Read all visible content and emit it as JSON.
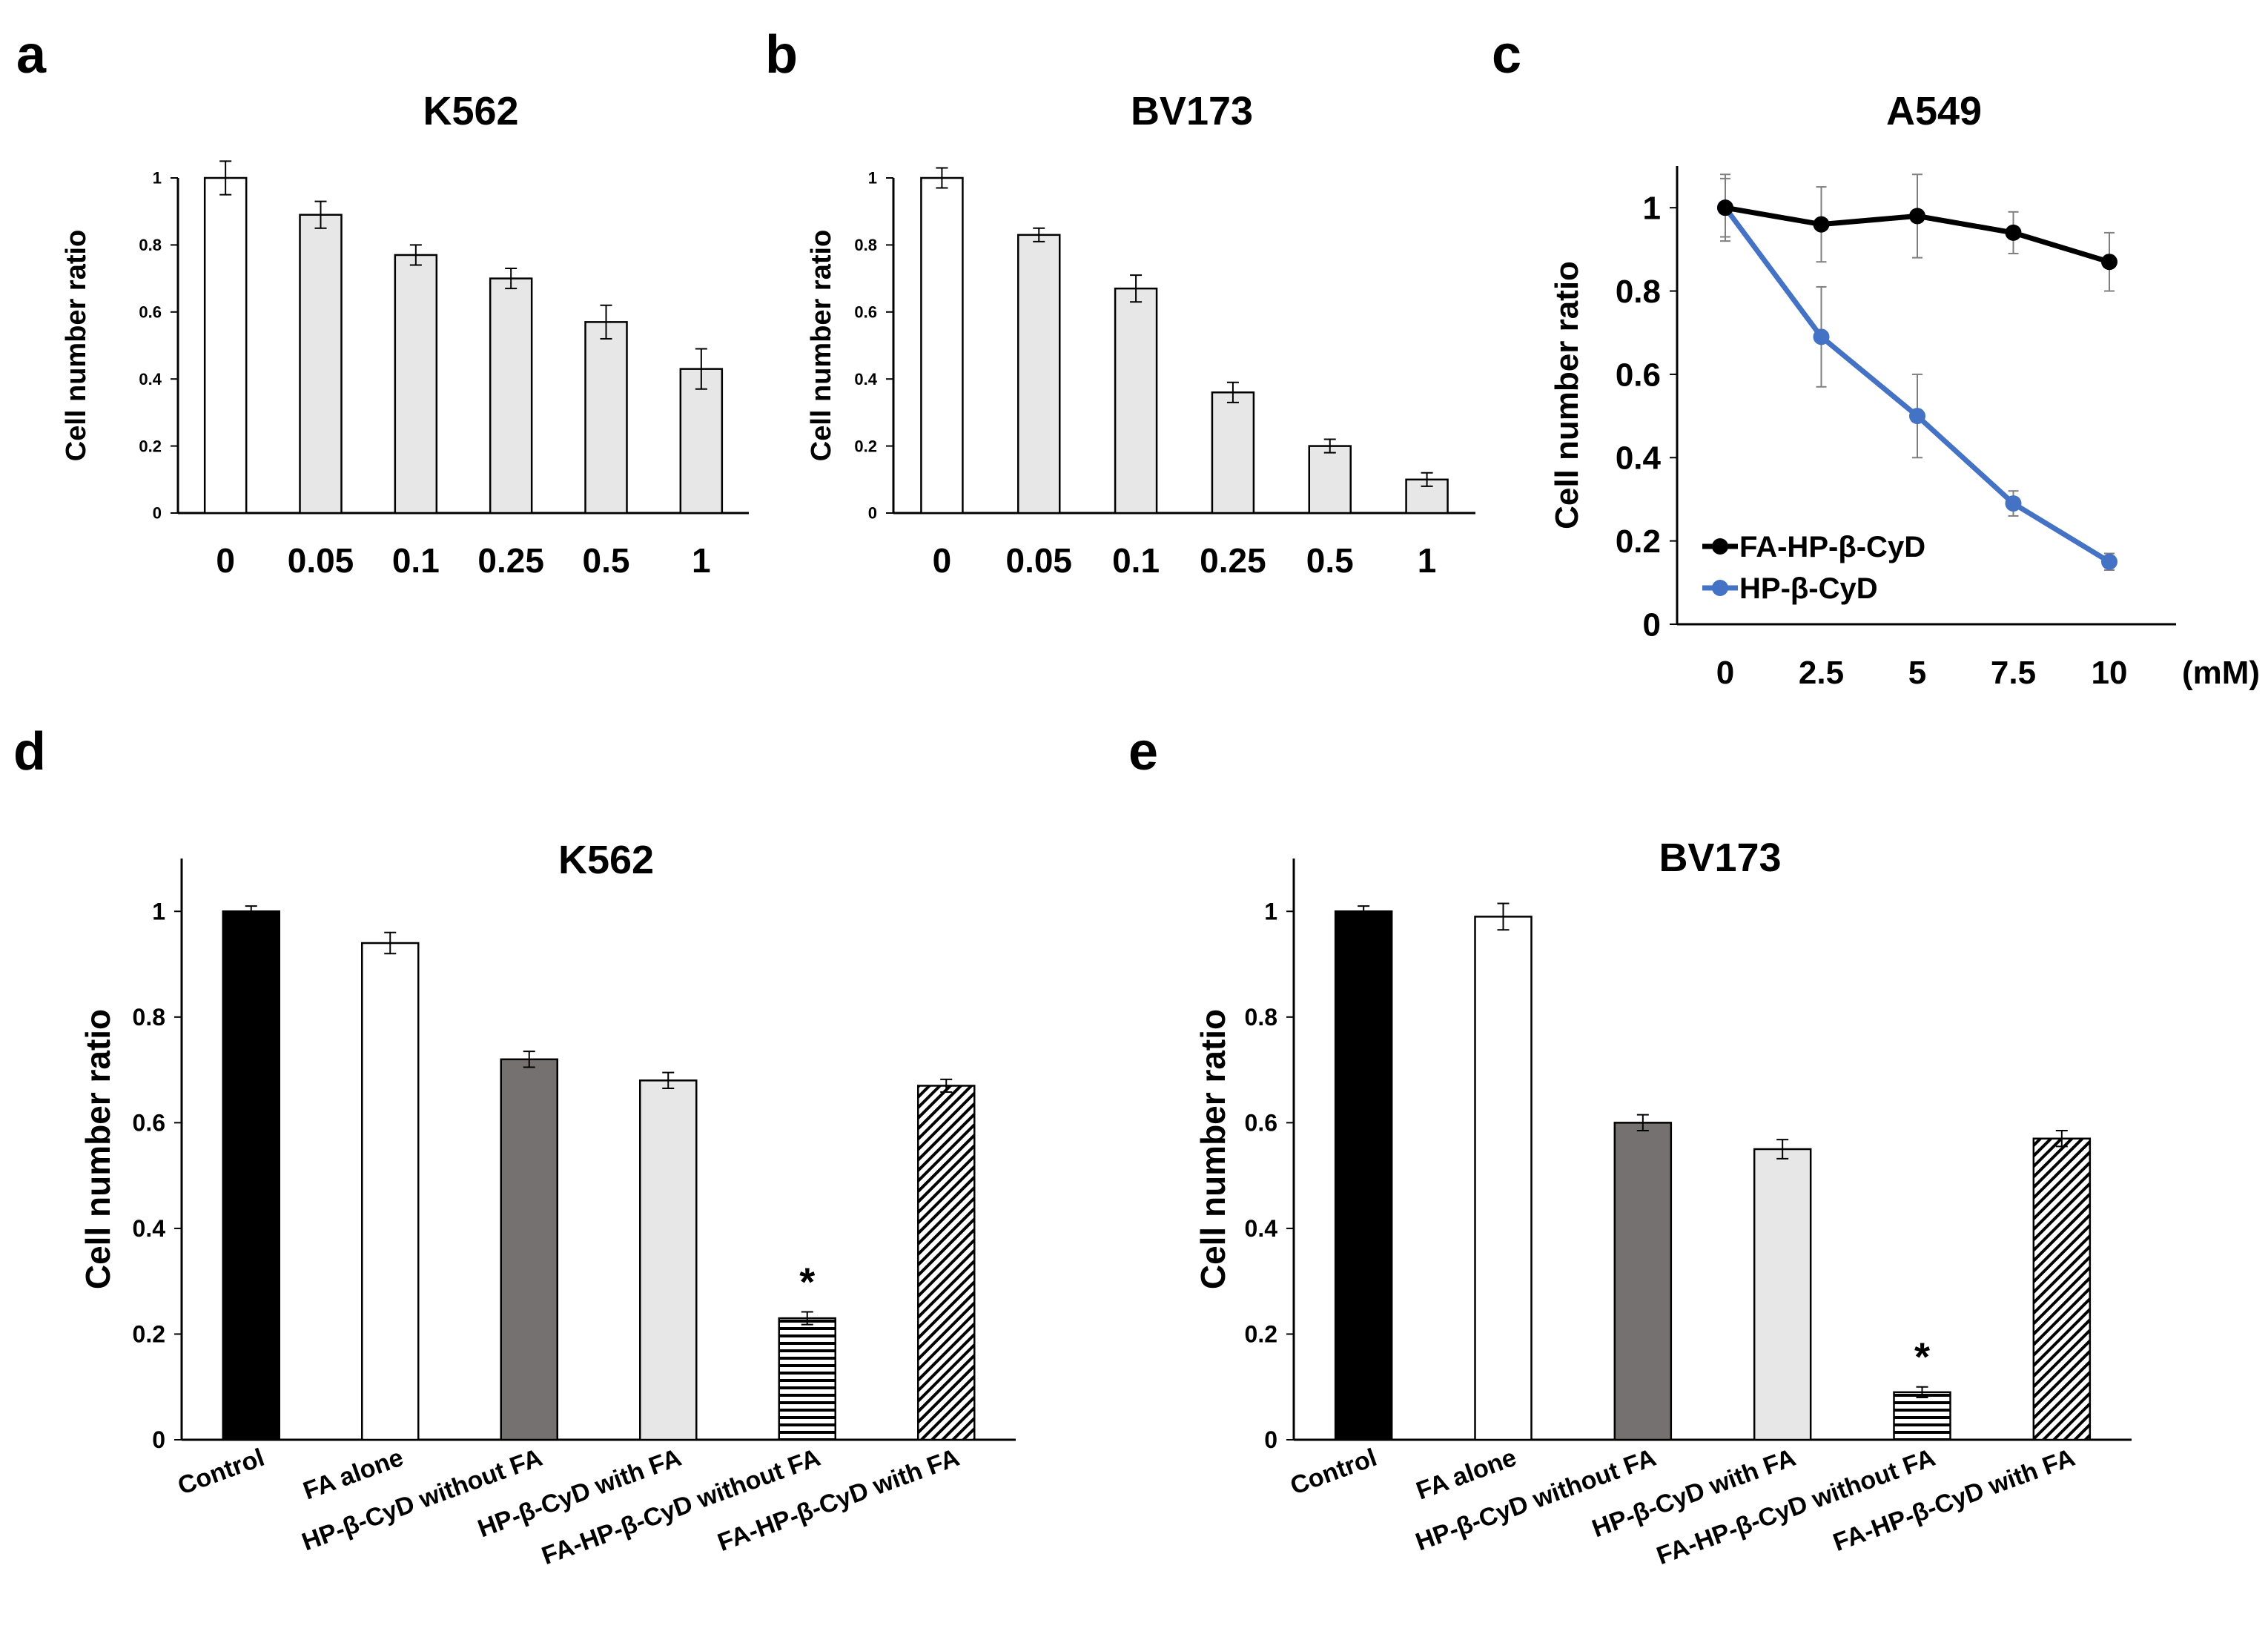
{
  "chart_data": [
    {
      "panel": "a",
      "type": "bar",
      "title": "K562",
      "ylabel": "Cell number ratio",
      "xlabel": "",
      "categories": [
        "0",
        "0.05",
        "0.1",
        "0.25",
        "0.5",
        "1"
      ],
      "values": [
        1.0,
        0.89,
        0.77,
        0.7,
        0.57,
        0.43
      ],
      "errors": [
        0.05,
        0.04,
        0.03,
        0.03,
        0.05,
        0.06
      ],
      "fills": [
        "#ffffff",
        "#e7e7e7",
        "#e7e7e7",
        "#e7e7e7",
        "#e7e7e7",
        "#e7e7e7"
      ],
      "ylim": [
        0,
        1
      ],
      "yticks": [
        "0",
        "0.2",
        "0.4",
        "0.6",
        "0.8",
        "1"
      ],
      "grid": false
    },
    {
      "panel": "b",
      "type": "bar",
      "title": "BV173",
      "ylabel": "Cell number ratio",
      "xlabel": "",
      "categories": [
        "0",
        "0.05",
        "0.1",
        "0.25",
        "0.5",
        "1"
      ],
      "values": [
        1.0,
        0.83,
        0.67,
        0.36,
        0.2,
        0.1
      ],
      "errors": [
        0.03,
        0.02,
        0.04,
        0.03,
        0.02,
        0.02
      ],
      "fills": [
        "#ffffff",
        "#e7e7e7",
        "#e7e7e7",
        "#e7e7e7",
        "#e7e7e7",
        "#e7e7e7"
      ],
      "ylim": [
        0,
        1
      ],
      "yticks": [
        "0",
        "0.2",
        "0.4",
        "0.6",
        "0.8",
        "1"
      ],
      "grid": false
    },
    {
      "panel": "c",
      "type": "line",
      "title": "A549",
      "ylabel": "Cell number ratio",
      "xlabel": "",
      "x_unit_label": "(mM)",
      "x": [
        "0",
        "2.5",
        "5",
        "7.5",
        "10"
      ],
      "series": [
        {
          "name": "FA-HP-β-CyD",
          "values": [
            1.0,
            0.96,
            0.98,
            0.94,
            0.87
          ],
          "errors": [
            0.08,
            0.09,
            0.1,
            0.05,
            0.07
          ],
          "color": "#000000"
        },
        {
          "name": "HP-β-CyD",
          "values": [
            1.0,
            0.69,
            0.5,
            0.29,
            0.15
          ],
          "errors": [
            0.07,
            0.12,
            0.1,
            0.03,
            0.02
          ],
          "color": "#4472c4"
        }
      ],
      "ylim": [
        0,
        1.1
      ],
      "yticks": [
        "0",
        "0.2",
        "0.4",
        "0.6",
        "0.8",
        "1"
      ],
      "legend": "bottom-left",
      "grid": false
    },
    {
      "panel": "d",
      "type": "bar",
      "title": "K562",
      "ylabel": "Cell number ratio",
      "xlabel": "",
      "categories": [
        "Control",
        "FA alone",
        "HP-β-CyD without FA",
        "HP-β-CyD with FA",
        "FA-HP-β-CyD without FA",
        "FA-HP-β-CyD with FA"
      ],
      "values": [
        1.0,
        0.94,
        0.72,
        0.68,
        0.23,
        0.67
      ],
      "errors": [
        0.01,
        0.02,
        0.015,
        0.015,
        0.012,
        0.012
      ],
      "fills": [
        "#000000",
        "#ffffff",
        "#767171",
        "#e7e7e7",
        "hstripes",
        "diag"
      ],
      "annotations": [
        "",
        "",
        "",
        "",
        "*",
        ""
      ],
      "ylim": [
        0,
        1.1
      ],
      "yticks": [
        "0",
        "0.2",
        "0.4",
        "0.6",
        "0.8",
        "1"
      ],
      "grid": false
    },
    {
      "panel": "e",
      "type": "bar",
      "title": "BV173",
      "ylabel": "Cell number ratio",
      "xlabel": "",
      "categories": [
        "Control",
        "FA alone",
        "HP-β-CyD without FA",
        "HP-β-CyD with FA",
        "FA-HP-β-CyD without FA",
        "FA-HP-β-CyD with FA"
      ],
      "values": [
        1.0,
        0.99,
        0.6,
        0.55,
        0.09,
        0.57
      ],
      "errors": [
        0.01,
        0.025,
        0.015,
        0.018,
        0.01,
        0.015
      ],
      "fills": [
        "#000000",
        "#ffffff",
        "#767171",
        "#e7e7e7",
        "hstripes",
        "diag"
      ],
      "annotations": [
        "",
        "",
        "",
        "",
        "*",
        ""
      ],
      "ylim": [
        0,
        1.1
      ],
      "yticks": [
        "0",
        "0.2",
        "0.4",
        "0.6",
        "0.8",
        "1"
      ],
      "grid": false
    }
  ],
  "panel_letters": [
    "a",
    "b",
    "c",
    "d",
    "e"
  ]
}
